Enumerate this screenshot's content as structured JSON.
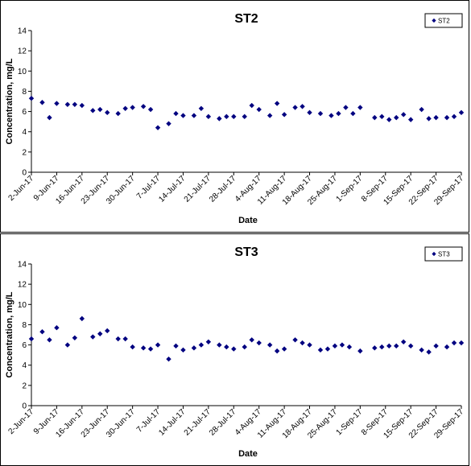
{
  "chart_data": [
    {
      "type": "scatter",
      "title": "ST2",
      "xlabel": "Date",
      "ylabel": "Concentration, mg/L",
      "ylim": [
        0,
        14
      ],
      "yticks": [
        "0",
        "2",
        "4",
        "6",
        "8",
        "10",
        "12",
        "14"
      ],
      "xrange": [
        "2-Jun-17",
        "29-Sep-17"
      ],
      "xticks": [
        "2-Jun-17",
        "9-Jun-17",
        "16-Jun-17",
        "23-Jun-17",
        "30-Jun-17",
        "7-Jul-17",
        "14-Jul-17",
        "21-Jul-17",
        "28-Jul-17",
        "4-Aug-17",
        "11-Aug-17",
        "18-Aug-17",
        "25-Aug-17",
        "1-Sep-17",
        "8-Sep-17",
        "15-Sep-17",
        "22-Sep-17",
        "29-Sep-17"
      ],
      "legend": "top-right",
      "color": "#000080",
      "series": [
        {
          "name": "ST2",
          "points": [
            [
              "2-Jun-17",
              7.3
            ],
            [
              "5-Jun-17",
              6.9
            ],
            [
              "7-Jun-17",
              5.4
            ],
            [
              "9-Jun-17",
              6.8
            ],
            [
              "12-Jun-17",
              6.7
            ],
            [
              "14-Jun-17",
              6.7
            ],
            [
              "16-Jun-17",
              6.6
            ],
            [
              "19-Jun-17",
              6.1
            ],
            [
              "21-Jun-17",
              6.2
            ],
            [
              "23-Jun-17",
              5.9
            ],
            [
              "26-Jun-17",
              5.8
            ],
            [
              "28-Jun-17",
              6.3
            ],
            [
              "30-Jun-17",
              6.4
            ],
            [
              "3-Jul-17",
              6.5
            ],
            [
              "5-Jul-17",
              6.2
            ],
            [
              "7-Jul-17",
              4.4
            ],
            [
              "10-Jul-17",
              4.8
            ],
            [
              "12-Jul-17",
              5.8
            ],
            [
              "14-Jul-17",
              5.6
            ],
            [
              "17-Jul-17",
              5.6
            ],
            [
              "19-Jul-17",
              6.3
            ],
            [
              "21-Jul-17",
              5.5
            ],
            [
              "24-Jul-17",
              5.3
            ],
            [
              "26-Jul-17",
              5.5
            ],
            [
              "28-Jul-17",
              5.5
            ],
            [
              "31-Jul-17",
              5.5
            ],
            [
              "2-Aug-17",
              6.6
            ],
            [
              "4-Aug-17",
              6.2
            ],
            [
              "7-Aug-17",
              5.6
            ],
            [
              "9-Aug-17",
              6.8
            ],
            [
              "11-Aug-17",
              5.7
            ],
            [
              "14-Aug-17",
              6.4
            ],
            [
              "16-Aug-17",
              6.5
            ],
            [
              "18-Aug-17",
              5.9
            ],
            [
              "21-Aug-17",
              5.8
            ],
            [
              "24-Aug-17",
              5.6
            ],
            [
              "26-Aug-17",
              5.8
            ],
            [
              "28-Aug-17",
              6.4
            ],
            [
              "30-Aug-17",
              5.8
            ],
            [
              "1-Sep-17",
              6.4
            ],
            [
              "5-Sep-17",
              5.4
            ],
            [
              "7-Sep-17",
              5.5
            ],
            [
              "9-Sep-17",
              5.2
            ],
            [
              "11-Sep-17",
              5.4
            ],
            [
              "13-Sep-17",
              5.7
            ],
            [
              "15-Sep-17",
              5.2
            ],
            [
              "18-Sep-17",
              6.2
            ],
            [
              "20-Sep-17",
              5.3
            ],
            [
              "22-Sep-17",
              5.4
            ],
            [
              "25-Sep-17",
              5.4
            ],
            [
              "27-Sep-17",
              5.5
            ],
            [
              "29-Sep-17",
              5.9
            ]
          ]
        }
      ]
    },
    {
      "type": "scatter",
      "title": "ST3",
      "xlabel": "Date",
      "ylabel": "Concentration, mg/L",
      "ylim": [
        0,
        14
      ],
      "yticks": [
        "0",
        "2",
        "4",
        "6",
        "8",
        "10",
        "12",
        "14"
      ],
      "xrange": [
        "2-Jun-17",
        "29-Sep-17"
      ],
      "xticks": [
        "2-Jun-17",
        "9-Jun-17",
        "16-Jun-17",
        "23-Jun-17",
        "30-Jun-17",
        "7-Jul-17",
        "14-Jul-17",
        "21-Jul-17",
        "28-Jul-17",
        "4-Aug-17",
        "11-Aug-17",
        "18-Aug-17",
        "25-Aug-17",
        "1-Sep-17",
        "8-Sep-17",
        "15-Sep-17",
        "22-Sep-17",
        "29-Sep-17"
      ],
      "legend": "top-right",
      "color": "#000080",
      "series": [
        {
          "name": "ST3",
          "points": [
            [
              "2-Jun-17",
              6.6
            ],
            [
              "5-Jun-17",
              7.3
            ],
            [
              "7-Jun-17",
              6.5
            ],
            [
              "9-Jun-17",
              7.7
            ],
            [
              "12-Jun-17",
              6.0
            ],
            [
              "14-Jun-17",
              6.7
            ],
            [
              "16-Jun-17",
              8.6
            ],
            [
              "19-Jun-17",
              6.8
            ],
            [
              "21-Jun-17",
              7.1
            ],
            [
              "23-Jun-17",
              7.4
            ],
            [
              "26-Jun-17",
              6.6
            ],
            [
              "28-Jun-17",
              6.6
            ],
            [
              "30-Jun-17",
              5.8
            ],
            [
              "3-Jul-17",
              5.7
            ],
            [
              "5-Jul-17",
              5.6
            ],
            [
              "7-Jul-17",
              6.0
            ],
            [
              "10-Jul-17",
              4.6
            ],
            [
              "12-Jul-17",
              5.9
            ],
            [
              "14-Jul-17",
              5.5
            ],
            [
              "17-Jul-17",
              5.7
            ],
            [
              "19-Jul-17",
              6.0
            ],
            [
              "21-Jul-17",
              6.3
            ],
            [
              "24-Jul-17",
              6.0
            ],
            [
              "26-Jul-17",
              5.8
            ],
            [
              "28-Jul-17",
              5.6
            ],
            [
              "31-Jul-17",
              5.8
            ],
            [
              "2-Aug-17",
              6.5
            ],
            [
              "4-Aug-17",
              6.2
            ],
            [
              "7-Aug-17",
              6.0
            ],
            [
              "9-Aug-17",
              5.4
            ],
            [
              "11-Aug-17",
              5.6
            ],
            [
              "14-Aug-17",
              6.5
            ],
            [
              "16-Aug-17",
              6.2
            ],
            [
              "18-Aug-17",
              6.0
            ],
            [
              "21-Aug-17",
              5.5
            ],
            [
              "23-Aug-17",
              5.6
            ],
            [
              "25-Aug-17",
              5.9
            ],
            [
              "27-Aug-17",
              6.0
            ],
            [
              "29-Aug-17",
              5.8
            ],
            [
              "1-Sep-17",
              5.4
            ],
            [
              "5-Sep-17",
              5.7
            ],
            [
              "7-Sep-17",
              5.8
            ],
            [
              "9-Sep-17",
              5.9
            ],
            [
              "11-Sep-17",
              5.9
            ],
            [
              "13-Sep-17",
              6.3
            ],
            [
              "15-Sep-17",
              5.9
            ],
            [
              "18-Sep-17",
              5.5
            ],
            [
              "20-Sep-17",
              5.3
            ],
            [
              "22-Sep-17",
              5.9
            ],
            [
              "25-Sep-17",
              5.8
            ],
            [
              "27-Sep-17",
              6.2
            ],
            [
              "29-Sep-17",
              6.2
            ]
          ]
        }
      ]
    }
  ]
}
